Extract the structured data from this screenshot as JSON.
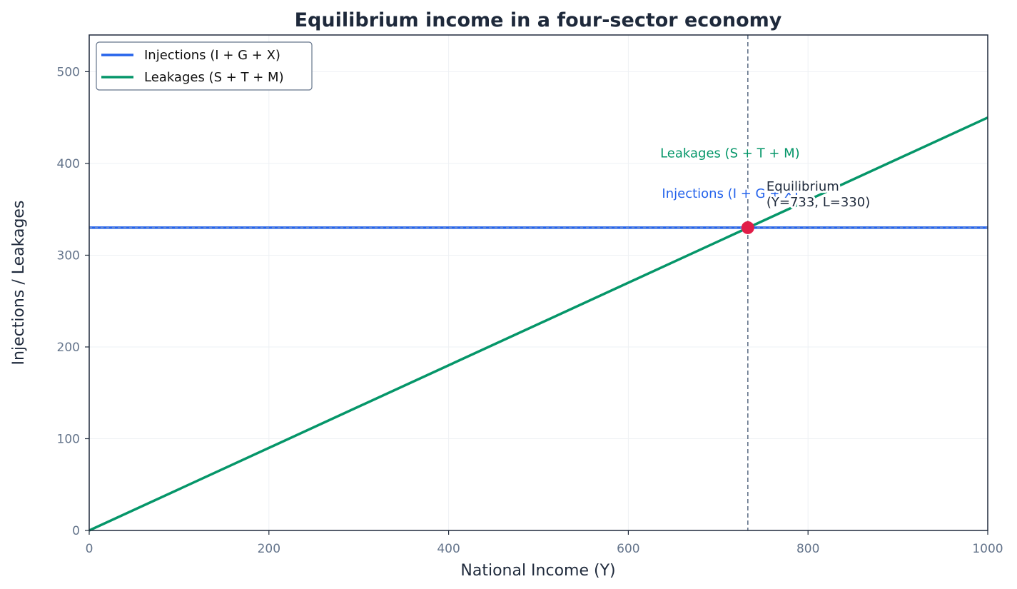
{
  "chart_data": {
    "type": "line",
    "title": "Equilibrium income in a four-sector economy",
    "xlabel": "National Income (Y)",
    "ylabel": "Injections / Leakages",
    "xlim": [
      0,
      1000
    ],
    "ylim": [
      0,
      540
    ],
    "xticks": [
      0,
      200,
      400,
      600,
      800,
      1000
    ],
    "yticks": [
      0,
      100,
      200,
      300,
      400,
      500
    ],
    "grid": true,
    "legend_position": "top-left",
    "series": [
      {
        "name": "Injections (I + G + X)",
        "color": "#2563eb",
        "x": [
          0,
          1000
        ],
        "y": [
          330,
          330
        ]
      },
      {
        "name": "Leakages (S + T + M)",
        "color": "#059669",
        "x": [
          0,
          1000
        ],
        "y": [
          0,
          450
        ]
      }
    ],
    "equilibrium": {
      "x": 733,
      "y": 330,
      "label_line1": "Equilibrium",
      "label_line2": "(Y=733, L=330)",
      "color": "#e11d48"
    },
    "line_labels": [
      {
        "text": "Leakages (S + T + M)",
        "color": "#059669",
        "x": 710,
        "y": 412
      },
      {
        "text": "Injections (I + G + X)",
        "color": "#2563eb",
        "x": 710,
        "y": 368
      }
    ]
  }
}
